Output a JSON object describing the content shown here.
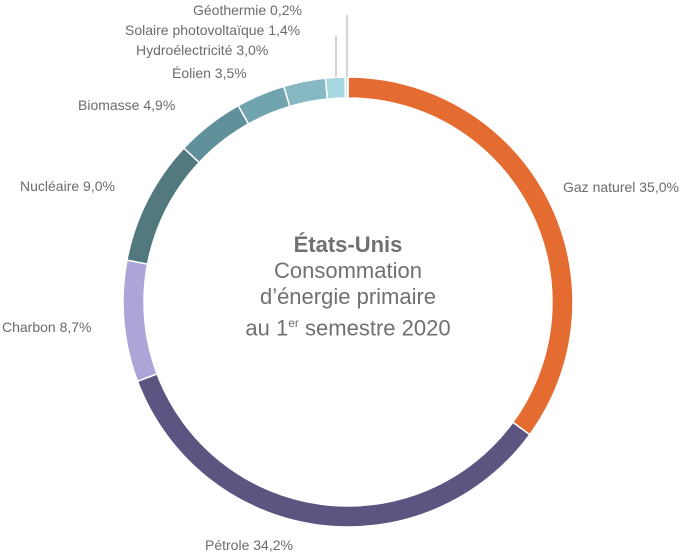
{
  "chart_data": {
    "type": "pie",
    "variant": "donut",
    "title": "États-Unis",
    "subtitle_lines": [
      "Consommation",
      "d’énergie primaire",
      "au 1",
      "er",
      " semestre 2020"
    ],
    "unit": "%",
    "slices": [
      {
        "name": "Gaz naturel",
        "value": 35.0,
        "label": "Gaz naturel 35,0%",
        "color": "#E56C31"
      },
      {
        "name": "Pétrole",
        "value": 34.2,
        "label": "Pétrole 34,2%",
        "color": "#5A5681"
      },
      {
        "name": "Charbon",
        "value": 8.7,
        "label": "Charbon 8,7%",
        "color": "#ABA6D7"
      },
      {
        "name": "Nucléaire",
        "value": 9.0,
        "label": "Nucléaire 9,0%",
        "color": "#52797D"
      },
      {
        "name": "Biomasse",
        "value": 4.9,
        "label": "Biomasse 4,9%",
        "color": "#60919A"
      },
      {
        "name": "Éolien",
        "value": 3.5,
        "label": "Éolien 3,5%",
        "color": "#70A4AF"
      },
      {
        "name": "Hydroélectricité",
        "value": 3.0,
        "label": "Hydroélectricité 3,0%",
        "color": "#86B8C4"
      },
      {
        "name": "Solaire photovoltaïque",
        "value": 1.4,
        "label": "Solaire photovoltaïque 1,4%",
        "color": "#A7D7E1"
      },
      {
        "name": "Géothermie",
        "value": 0.2,
        "label": "Géothermie 0,2%",
        "color": "#C9E6EC"
      }
    ]
  }
}
